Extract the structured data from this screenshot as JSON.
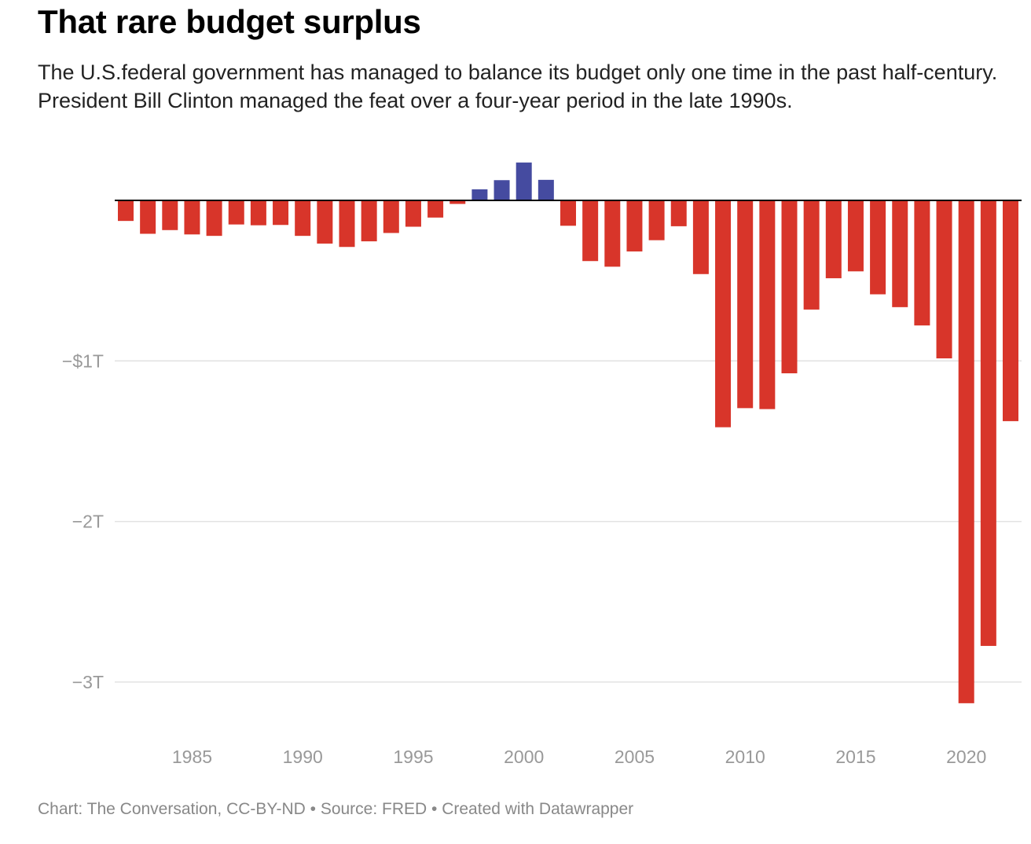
{
  "header": {
    "title": "That rare budget surplus",
    "subtitle": "The U.S.federal government has managed to balance its budget only one time in the past half-century. President Bill Clinton managed the feat over a four-year period in the late 1990s."
  },
  "footer": {
    "credit": "Chart: The Conversation, CC-BY-ND • Source: FRED • Created with Datawrapper"
  },
  "colors": {
    "deficit": "#d8352a",
    "surplus": "#454ba0",
    "grid": "#e2e2e2",
    "baseline": "#000000"
  },
  "chart_data": {
    "type": "bar",
    "title": "That rare budget surplus",
    "xlabel": "",
    "ylabel": "",
    "ylim": [
      -3.2,
      0.3
    ],
    "grid": true,
    "yticks": [
      {
        "value": -1,
        "label": "−$1T"
      },
      {
        "value": -2,
        "label": "−2T"
      },
      {
        "value": -3,
        "label": "−3T"
      }
    ],
    "xticks": [
      "1985",
      "1990",
      "1995",
      "2000",
      "2005",
      "2010",
      "2015",
      "2020"
    ],
    "categories": [
      1982,
      1983,
      1984,
      1985,
      1986,
      1987,
      1988,
      1989,
      1990,
      1991,
      1992,
      1993,
      1994,
      1995,
      1996,
      1997,
      1998,
      1999,
      2000,
      2001,
      2002,
      2003,
      2004,
      2005,
      2006,
      2007,
      2008,
      2009,
      2010,
      2011,
      2012,
      2013,
      2014,
      2015,
      2016,
      2017,
      2018,
      2019,
      2020,
      2021,
      2022
    ],
    "values": [
      -0.128,
      -0.208,
      -0.185,
      -0.212,
      -0.221,
      -0.15,
      -0.155,
      -0.153,
      -0.221,
      -0.269,
      -0.29,
      -0.255,
      -0.203,
      -0.164,
      -0.107,
      -0.022,
      0.069,
      0.126,
      0.236,
      0.128,
      -0.158,
      -0.378,
      -0.413,
      -0.318,
      -0.248,
      -0.161,
      -0.459,
      -1.413,
      -1.294,
      -1.3,
      -1.077,
      -0.68,
      -0.485,
      -0.442,
      -0.585,
      -0.665,
      -0.779,
      -0.984,
      -3.132,
      -2.775,
      -1.375
    ],
    "units": "trillions USD"
  }
}
